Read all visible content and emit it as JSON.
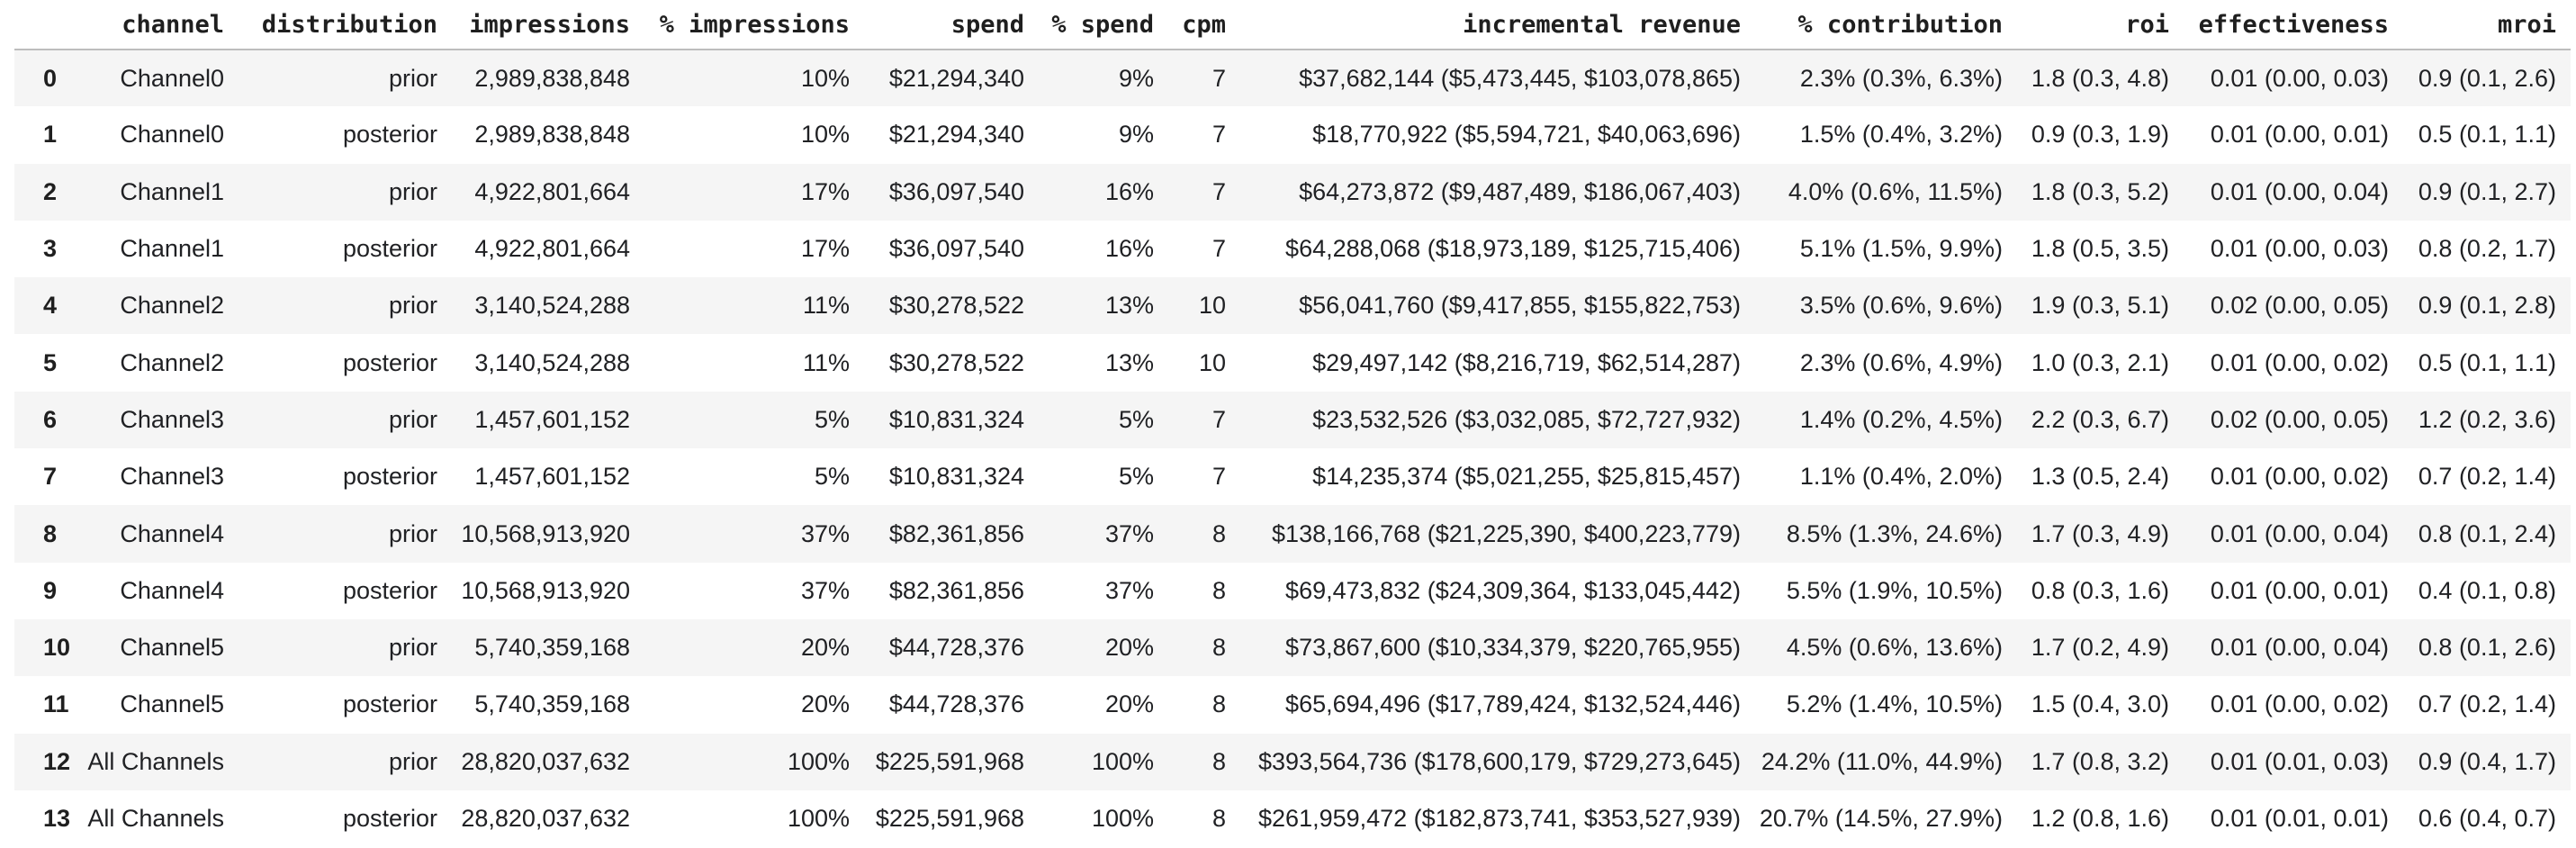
{
  "colors": {
    "background": "#ffffff",
    "row_stripe": "#f5f5f5",
    "header_rule": "#bdbdbd",
    "text": "#202124"
  },
  "table": {
    "columns": [
      "",
      "channel",
      "distribution",
      "impressions",
      "% impressions",
      "spend",
      "% spend",
      "cpm",
      "incremental revenue",
      "% contribution",
      "roi",
      "effectiveness",
      "mroi"
    ],
    "rows": [
      [
        "0",
        "Channel0",
        "prior",
        "2,989,838,848",
        "10%",
        "$21,294,340",
        "9%",
        "7",
        "$37,682,144 ($5,473,445, $103,078,865)",
        "2.3% (0.3%, 6.3%)",
        "1.8 (0.3, 4.8)",
        "0.01 (0.00, 0.03)",
        "0.9 (0.1, 2.6)"
      ],
      [
        "1",
        "Channel0",
        "posterior",
        "2,989,838,848",
        "10%",
        "$21,294,340",
        "9%",
        "7",
        "$18,770,922 ($5,594,721, $40,063,696)",
        "1.5% (0.4%, 3.2%)",
        "0.9 (0.3, 1.9)",
        "0.01 (0.00, 0.01)",
        "0.5 (0.1, 1.1)"
      ],
      [
        "2",
        "Channel1",
        "prior",
        "4,922,801,664",
        "17%",
        "$36,097,540",
        "16%",
        "7",
        "$64,273,872 ($9,487,489, $186,067,403)",
        "4.0% (0.6%, 11.5%)",
        "1.8 (0.3, 5.2)",
        "0.01 (0.00, 0.04)",
        "0.9 (0.1, 2.7)"
      ],
      [
        "3",
        "Channel1",
        "posterior",
        "4,922,801,664",
        "17%",
        "$36,097,540",
        "16%",
        "7",
        "$64,288,068 ($18,973,189, $125,715,406)",
        "5.1% (1.5%, 9.9%)",
        "1.8 (0.5, 3.5)",
        "0.01 (0.00, 0.03)",
        "0.8 (0.2, 1.7)"
      ],
      [
        "4",
        "Channel2",
        "prior",
        "3,140,524,288",
        "11%",
        "$30,278,522",
        "13%",
        "10",
        "$56,041,760 ($9,417,855, $155,822,753)",
        "3.5% (0.6%, 9.6%)",
        "1.9 (0.3, 5.1)",
        "0.02 (0.00, 0.05)",
        "0.9 (0.1, 2.8)"
      ],
      [
        "5",
        "Channel2",
        "posterior",
        "3,140,524,288",
        "11%",
        "$30,278,522",
        "13%",
        "10",
        "$29,497,142 ($8,216,719, $62,514,287)",
        "2.3% (0.6%, 4.9%)",
        "1.0 (0.3, 2.1)",
        "0.01 (0.00, 0.02)",
        "0.5 (0.1, 1.1)"
      ],
      [
        "6",
        "Channel3",
        "prior",
        "1,457,601,152",
        "5%",
        "$10,831,324",
        "5%",
        "7",
        "$23,532,526 ($3,032,085, $72,727,932)",
        "1.4% (0.2%, 4.5%)",
        "2.2 (0.3, 6.7)",
        "0.02 (0.00, 0.05)",
        "1.2 (0.2, 3.6)"
      ],
      [
        "7",
        "Channel3",
        "posterior",
        "1,457,601,152",
        "5%",
        "$10,831,324",
        "5%",
        "7",
        "$14,235,374 ($5,021,255, $25,815,457)",
        "1.1% (0.4%, 2.0%)",
        "1.3 (0.5, 2.4)",
        "0.01 (0.00, 0.02)",
        "0.7 (0.2, 1.4)"
      ],
      [
        "8",
        "Channel4",
        "prior",
        "10,568,913,920",
        "37%",
        "$82,361,856",
        "37%",
        "8",
        "$138,166,768 ($21,225,390, $400,223,779)",
        "8.5% (1.3%, 24.6%)",
        "1.7 (0.3, 4.9)",
        "0.01 (0.00, 0.04)",
        "0.8 (0.1, 2.4)"
      ],
      [
        "9",
        "Channel4",
        "posterior",
        "10,568,913,920",
        "37%",
        "$82,361,856",
        "37%",
        "8",
        "$69,473,832 ($24,309,364, $133,045,442)",
        "5.5% (1.9%, 10.5%)",
        "0.8 (0.3, 1.6)",
        "0.01 (0.00, 0.01)",
        "0.4 (0.1, 0.8)"
      ],
      [
        "10",
        "Channel5",
        "prior",
        "5,740,359,168",
        "20%",
        "$44,728,376",
        "20%",
        "8",
        "$73,867,600 ($10,334,379, $220,765,955)",
        "4.5% (0.6%, 13.6%)",
        "1.7 (0.2, 4.9)",
        "0.01 (0.00, 0.04)",
        "0.8 (0.1, 2.6)"
      ],
      [
        "11",
        "Channel5",
        "posterior",
        "5,740,359,168",
        "20%",
        "$44,728,376",
        "20%",
        "8",
        "$65,694,496 ($17,789,424, $132,524,446)",
        "5.2% (1.4%, 10.5%)",
        "1.5 (0.4, 3.0)",
        "0.01 (0.00, 0.02)",
        "0.7 (0.2, 1.4)"
      ],
      [
        "12",
        "All Channels",
        "prior",
        "28,820,037,632",
        "100%",
        "$225,591,968",
        "100%",
        "8",
        "$393,564,736 ($178,600,179, $729,273,645)",
        "24.2% (11.0%, 44.9%)",
        "1.7 (0.8, 3.2)",
        "0.01 (0.01, 0.03)",
        "0.9 (0.4, 1.7)"
      ],
      [
        "13",
        "All Channels",
        "posterior",
        "28,820,037,632",
        "100%",
        "$225,591,968",
        "100%",
        "8",
        "$261,959,472 ($182,873,741, $353,527,939)",
        "20.7% (14.5%, 27.9%)",
        "1.2 (0.8, 1.6)",
        "0.01 (0.01, 0.01)",
        "0.6 (0.4, 0.7)"
      ]
    ]
  }
}
